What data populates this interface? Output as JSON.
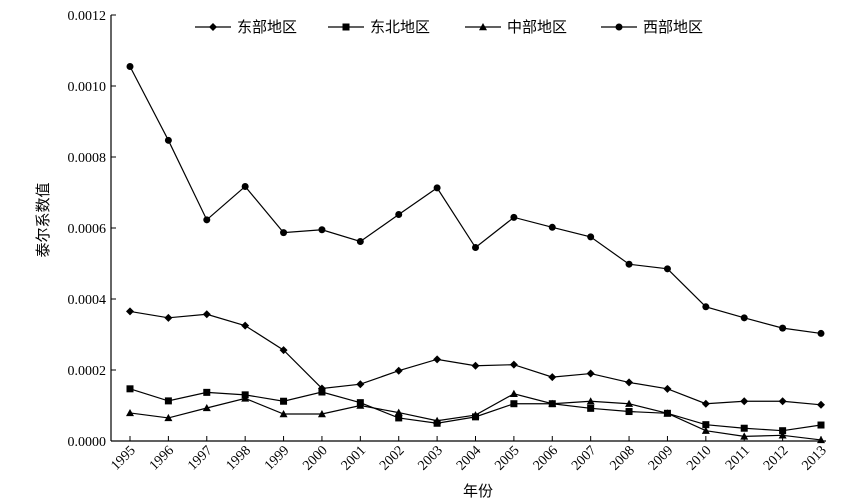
{
  "chart_data": {
    "type": "line",
    "xlabel": "年份",
    "ylabel": "泰尔系数值",
    "x": [
      "1995",
      "1996",
      "1997",
      "1998",
      "1999",
      "2000",
      "2001",
      "2002",
      "2003",
      "2004",
      "2005",
      "2006",
      "2007",
      "2008",
      "2009",
      "2010",
      "2011",
      "2012",
      "2013"
    ],
    "ylim": [
      0,
      0.0012
    ],
    "yticks": [
      "0.0000",
      "0.0002",
      "0.0004",
      "0.0006",
      "0.0008",
      "0.0010",
      "0.0012"
    ],
    "grid": false,
    "legend_position": "top",
    "series": [
      {
        "name": "东部地区",
        "marker": "diamond",
        "values": [
          0.000365,
          0.000347,
          0.000357,
          0.000325,
          0.000256,
          0.000148,
          0.00016,
          0.000198,
          0.00023,
          0.000212,
          0.000215,
          0.00018,
          0.00019,
          0.000165,
          0.000147,
          0.000105,
          0.000112,
          0.000112,
          0.000102
        ]
      },
      {
        "name": "东北地区",
        "marker": "square",
        "values": [
          0.000147,
          0.000113,
          0.000137,
          0.00013,
          0.000112,
          0.000138,
          0.000108,
          6.5e-05,
          5e-05,
          6.8e-05,
          0.000105,
          0.000105,
          9.2e-05,
          8.3e-05,
          7.8e-05,
          4.6e-05,
          3.6e-05,
          2.9e-05,
          4.5e-05
        ]
      },
      {
        "name": "中部地区",
        "marker": "triangle",
        "values": [
          7.9e-05,
          6.5e-05,
          9.3e-05,
          0.00012,
          7.6e-05,
          7.6e-05,
          0.0001,
          8e-05,
          5.7e-05,
          7.3e-05,
          0.000133,
          0.000105,
          0.000112,
          0.000105,
          7.8e-05,
          2.9e-05,
          1.3e-05,
          1.6e-05,
          3e-06
        ]
      },
      {
        "name": "西部地区",
        "marker": "circle",
        "values": [
          0.001055,
          0.000847,
          0.000623,
          0.000717,
          0.000587,
          0.000595,
          0.000562,
          0.000638,
          0.000713,
          0.000545,
          0.00063,
          0.000602,
          0.000575,
          0.000498,
          0.000485,
          0.000378,
          0.000347,
          0.000318,
          0.000303
        ]
      }
    ]
  }
}
